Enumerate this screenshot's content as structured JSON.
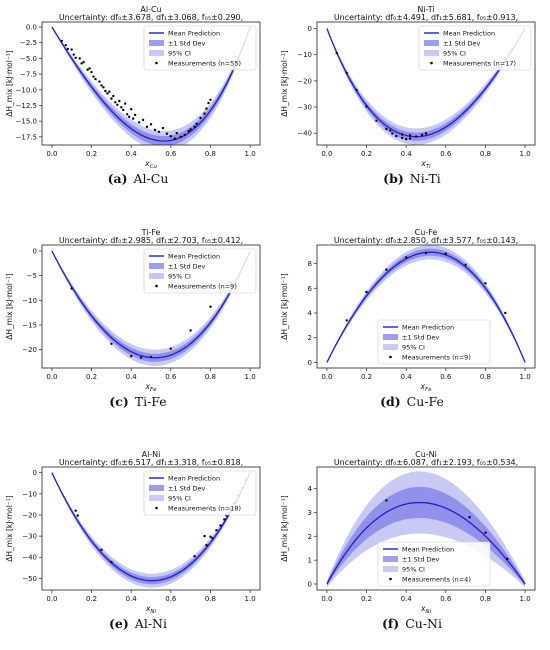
{
  "figure": {
    "colors": {
      "mean": "#1f1fcc",
      "band_std": "#7d7de8",
      "band_ci": "#c9c9f5",
      "points": "#000000"
    }
  },
  "chart_data": [
    {
      "type": "line",
      "panel_id": "a",
      "caption_letter": "(a)",
      "caption_text": "Al-Cu",
      "title": "Al-Cu",
      "subtitle": "Uncertainty: df₀±3.678, df₁±3.068, f₀₅±0.290,",
      "xlabel": "x_Cu",
      "xlabel_main": "x",
      "xlabel_sub": "Cu",
      "ylabel": "ΔH_mix [kJ·mol⁻¹]",
      "xlim": [
        -0.05,
        1.05
      ],
      "ylim": [
        -18.8,
        0.8
      ],
      "xticks": [
        0.0,
        0.2,
        0.4,
        0.6,
        0.8,
        1.0
      ],
      "yticks": [
        0.0,
        -2.5,
        -5.0,
        -7.5,
        -10.0,
        -12.5,
        -15.0,
        -17.5
      ],
      "ytick_labels": [
        "0.0",
        "−2.5",
        "−5.0",
        "−7.5",
        "−10.0",
        "−12.5",
        "−15.0",
        "−17.5"
      ],
      "mean_curve": {
        "form": "x(1-x)(a+b(1-2x))",
        "a": -71.4,
        "b": 19.6
      },
      "bands": {
        "std_half_width": 0.04,
        "ci_half_width": 0.08
      },
      "legend": {
        "position": "top-right",
        "entries": [
          "Mean Prediction",
          "±1 Std Dev",
          "95% CI",
          "Measurements (n=55)"
        ]
      },
      "measurements": [
        [
          0.05,
          -2.2
        ],
        [
          0.07,
          -2.9
        ],
        [
          0.08,
          -3.5
        ],
        [
          0.1,
          -3.6
        ],
        [
          0.11,
          -4.4
        ],
        [
          0.12,
          -4.9
        ],
        [
          0.14,
          -5.0
        ],
        [
          0.15,
          -5.8
        ],
        [
          0.16,
          -5.6
        ],
        [
          0.18,
          -6.8
        ],
        [
          0.19,
          -6.6
        ],
        [
          0.2,
          -7.2
        ],
        [
          0.21,
          -7.9
        ],
        [
          0.22,
          -8.3
        ],
        [
          0.24,
          -8.7
        ],
        [
          0.25,
          -9.3
        ],
        [
          0.26,
          -9.6
        ],
        [
          0.27,
          -10.2
        ],
        [
          0.28,
          -10.6
        ],
        [
          0.29,
          -10.3
        ],
        [
          0.3,
          -11.4
        ],
        [
          0.31,
          -11.0
        ],
        [
          0.32,
          -12.0
        ],
        [
          0.33,
          -12.4
        ],
        [
          0.34,
          -11.8
        ],
        [
          0.35,
          -12.8
        ],
        [
          0.36,
          -13.2
        ],
        [
          0.37,
          -12.2
        ],
        [
          0.38,
          -13.9
        ],
        [
          0.39,
          -14.3
        ],
        [
          0.4,
          -13.1
        ],
        [
          0.41,
          -14.6
        ],
        [
          0.42,
          -14.0
        ],
        [
          0.44,
          -15.2
        ],
        [
          0.46,
          -14.8
        ],
        [
          0.48,
          -15.9
        ],
        [
          0.5,
          -15.5
        ],
        [
          0.52,
          -16.4
        ],
        [
          0.54,
          -16.7
        ],
        [
          0.56,
          -16.1
        ],
        [
          0.58,
          -17.0
        ],
        [
          0.6,
          -17.4
        ],
        [
          0.62,
          -17.8
        ],
        [
          0.63,
          -16.9
        ],
        [
          0.65,
          -17.5
        ],
        [
          0.67,
          -17.2
        ],
        [
          0.69,
          -16.6
        ],
        [
          0.7,
          -16.3
        ],
        [
          0.72,
          -15.9
        ],
        [
          0.73,
          -15.4
        ],
        [
          0.75,
          -14.5
        ],
        [
          0.77,
          -13.8
        ],
        [
          0.78,
          -13.0
        ],
        [
          0.79,
          -12.1
        ],
        [
          0.8,
          -11.6
        ]
      ]
    },
    {
      "type": "line",
      "panel_id": "b",
      "caption_letter": "(b)",
      "caption_text": "Ni-Ti",
      "title": "Ni-Ti",
      "subtitle": "Uncertainty: df₀±4.491, df₁±5.681, f₀₅±0.913,",
      "xlabel": "x_Ti",
      "xlabel_main": "x",
      "xlabel_sub": "Ti",
      "ylabel": "ΔH_mix [kJ·mol⁻¹]",
      "xlim": [
        -0.05,
        1.05
      ],
      "ylim": [
        -44.5,
        2.5
      ],
      "xticks": [
        0.0,
        0.2,
        0.4,
        0.6,
        0.8,
        1.0
      ],
      "yticks": [
        0,
        -10,
        -20,
        -30,
        -40
      ],
      "ytick_labels": [
        "0",
        "−10",
        "−20",
        "−30",
        "−40"
      ],
      "mean_curve": {
        "form": "x(1-x)(a+b(1-2x))",
        "a": -163.6,
        "b": -33.8
      },
      "bands": {
        "std_half_width": 0.035,
        "ci_half_width": 0.07
      },
      "legend": {
        "position": "top-right",
        "entries": [
          "Mean Prediction",
          "±1 Std Dev",
          "95% CI",
          "Measurements (n=17)"
        ]
      },
      "measurements": [
        [
          0.05,
          -9.4
        ],
        [
          0.1,
          -17.0
        ],
        [
          0.15,
          -23.5
        ],
        [
          0.2,
          -29.8
        ],
        [
          0.25,
          -35.2
        ],
        [
          0.3,
          -38.4
        ],
        [
          0.33,
          -40.1
        ],
        [
          0.35,
          -41.1
        ],
        [
          0.38,
          -41.8
        ],
        [
          0.4,
          -42.3
        ],
        [
          0.42,
          -42.0
        ],
        [
          0.45,
          -41.3
        ],
        [
          0.48,
          -40.6
        ],
        [
          0.5,
          -40.1
        ],
        [
          0.38,
          -40.5
        ],
        [
          0.42,
          -40.8
        ],
        [
          0.32,
          -39.0
        ]
      ]
    },
    {
      "type": "line",
      "panel_id": "c",
      "caption_letter": "(c)",
      "caption_text": "Ti-Fe",
      "title": "Ti-Fe",
      "subtitle": "Uncertainty: df₀±2.985, df₁±2.703, f₀₅±0.412,",
      "xlabel": "x_Fe",
      "xlabel_main": "x",
      "xlabel_sub": "Fe",
      "ylabel": "ΔH_mix [kJ·mol⁻¹]",
      "xlim": [
        -0.05,
        1.05
      ],
      "ylim": [
        -23.7,
        1.2
      ],
      "xticks": [
        0.0,
        0.2,
        0.4,
        0.6,
        0.8,
        1.0
      ],
      "yticks": [
        0,
        -5,
        -10,
        -15,
        -20
      ],
      "ytick_labels": [
        "0",
        "−5",
        "−10",
        "−15",
        "−20"
      ],
      "mean_curve": {
        "form": "x(1-x)(a+b(1-2x))",
        "a": -86.4,
        "b": 7.2
      },
      "bands": {
        "std_half_width": 0.035,
        "ci_half_width": 0.07
      },
      "legend": {
        "position": "top-right",
        "entries": [
          "Mean Prediction",
          "±1 Std Dev",
          "95% CI",
          "Measurements (n=9)"
        ]
      },
      "measurements": [
        [
          0.1,
          -7.6
        ],
        [
          0.3,
          -18.8
        ],
        [
          0.4,
          -21.3
        ],
        [
          0.45,
          -21.6
        ],
        [
          0.5,
          -21.5
        ],
        [
          0.6,
          -19.8
        ],
        [
          0.7,
          -16.1
        ],
        [
          0.8,
          -11.3
        ],
        [
          0.9,
          -6.4
        ]
      ]
    },
    {
      "type": "line",
      "panel_id": "d",
      "caption_letter": "(d)",
      "caption_text": "Cu-Fe",
      "title": "Cu-Fe",
      "subtitle": "Uncertainty: df₀±2.850, df₁±3.577, f₀₅±0.143,",
      "xlabel": "x_Fe",
      "xlabel_main": "x",
      "xlabel_sub": "Fe",
      "ylabel": "ΔH_mix [kJ·mol⁻¹]",
      "xlim": [
        -0.05,
        1.05
      ],
      "ylim": [
        -0.45,
        9.5
      ],
      "xticks": [
        0.0,
        0.2,
        0.4,
        0.6,
        0.8,
        1.0
      ],
      "yticks": [
        0,
        2,
        4,
        6,
        8
      ],
      "ytick_labels": [
        "0",
        "2",
        "4",
        "6",
        "8"
      ],
      "mean_curve": {
        "form": "x(1-x)(a+b(1-2x))",
        "a": 35.6,
        "b": -3.2
      },
      "bands": {
        "std_half_width": 0.03,
        "ci_half_width": 0.06
      },
      "legend": {
        "position": "lower-center",
        "entries": [
          "Mean Prediction",
          "±1 Std Dev",
          "95% CI",
          "Measurements (n=9)"
        ]
      },
      "measurements": [
        [
          0.1,
          3.4
        ],
        [
          0.2,
          5.7
        ],
        [
          0.3,
          7.5
        ],
        [
          0.4,
          8.5
        ],
        [
          0.5,
          8.85
        ],
        [
          0.6,
          8.8
        ],
        [
          0.7,
          7.9
        ],
        [
          0.8,
          6.4
        ],
        [
          0.9,
          4.0
        ]
      ]
    },
    {
      "type": "line",
      "panel_id": "e",
      "caption_letter": "(e)",
      "caption_text": "Al-Ni",
      "title": "Al-Ni",
      "subtitle": "Uncertainty: df₀±6.517, df₁±3.318, f₀₅±0.818,",
      "xlabel": "x_Ni",
      "xlabel_main": "x",
      "xlabel_sub": "Ni",
      "ylabel": "ΔH_mix [kJ·mol⁻¹]",
      "xlim": [
        -0.05,
        1.05
      ],
      "ylim": [
        -55.5,
        2.7
      ],
      "xticks": [
        0.0,
        0.2,
        0.4,
        0.6,
        0.8,
        1.0
      ],
      "yticks": [
        0,
        -10,
        -20,
        -30,
        -40,
        -50
      ],
      "ytick_labels": [
        "0",
        "−10",
        "−20",
        "−30",
        "−40",
        "−50"
      ],
      "mean_curve": {
        "form": "x(1-x)(a+b(1-2x))",
        "a": -204.4,
        "b": 4.0
      },
      "bands": {
        "std_half_width": 0.03,
        "ci_half_width": 0.06
      },
      "legend": {
        "position": "top-right",
        "entries": [
          "Mean Prediction",
          "±1 Std Dev",
          "95% CI",
          "Measurements (n=18)"
        ]
      },
      "measurements": [
        [
          0.12,
          -18.0
        ],
        [
          0.13,
          -20.3
        ],
        [
          0.25,
          -36.5
        ],
        [
          0.3,
          -42.3
        ],
        [
          0.72,
          -39.5
        ],
        [
          0.77,
          -30.0
        ],
        [
          0.78,
          -34.3
        ],
        [
          0.8,
          -30.3
        ],
        [
          0.81,
          -31.0
        ],
        [
          0.83,
          -27.2
        ],
        [
          0.85,
          -25.0
        ],
        [
          0.87,
          -22.1
        ],
        [
          0.88,
          -20.2
        ],
        [
          0.9,
          -17.0
        ],
        [
          0.92,
          -14.6
        ],
        [
          0.94,
          -10.7
        ],
        [
          0.96,
          -7.2
        ],
        [
          0.98,
          -3.5
        ]
      ]
    },
    {
      "type": "line",
      "panel_id": "f",
      "caption_letter": "(f)",
      "caption_text": "Cu-Ni",
      "title": "Cu-Ni",
      "subtitle": "Uncertainty: df₀±6.087, df₁±2.193, f₀₅±0.534,",
      "xlabel": "x_Ni",
      "xlabel_main": "x",
      "xlabel_sub": "Ni",
      "ylabel": "ΔH_mix [kJ·mol⁻¹]",
      "xlim": [
        -0.05,
        1.05
      ],
      "ylim": [
        -0.25,
        4.9
      ],
      "xticks": [
        0.0,
        0.2,
        0.4,
        0.6,
        0.8,
        1.0
      ],
      "yticks": [
        0,
        1,
        2,
        3,
        4
      ],
      "ytick_labels": [
        "0",
        "1",
        "2",
        "3",
        "4"
      ],
      "mean_curve": {
        "form": "x(1-x)(a+b(1-2x))",
        "a": 13.6,
        "b": 1.8
      },
      "bands": {
        "std_half_width": 0.17,
        "ci_half_width": 0.34
      },
      "legend": {
        "position": "lower-center",
        "entries": [
          "Mean Prediction",
          "±1 Std Dev",
          "95% CI",
          "Measurements (n=4)"
        ]
      },
      "measurements": [
        [
          0.3,
          3.5
        ],
        [
          0.72,
          2.8
        ],
        [
          0.8,
          2.15
        ],
        [
          0.91,
          1.05
        ]
      ]
    }
  ]
}
